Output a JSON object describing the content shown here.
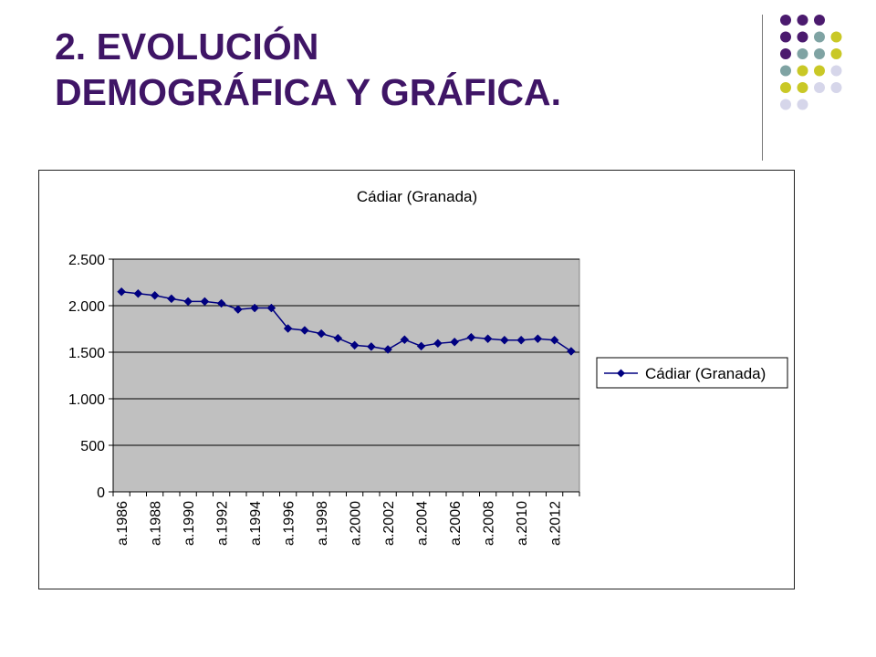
{
  "slide": {
    "title_line1": "2. EVOLUCIÓN",
    "title_line2": "DEMOGRÁFICA Y GRÁFICA."
  },
  "colors": {
    "title": "#3f1566",
    "plot_background": "#c0c0c0",
    "series": "#000080",
    "dot_purple": "#4b1a6e",
    "dot_teal": "#7fa3a3",
    "dot_olive": "#c9c826",
    "dot_lavender": "#d6d6ea"
  },
  "decoration": {
    "dot_grid": [
      [
        "purple",
        "purple",
        "purple",
        null,
        null
      ],
      [
        "purple",
        "purple",
        "teal",
        "olive",
        null
      ],
      [
        "purple",
        "teal",
        "teal",
        "olive",
        null
      ],
      [
        "teal",
        "olive",
        "olive",
        "lavender",
        null
      ],
      [
        "olive",
        "olive",
        "lavender",
        "lavender",
        null
      ],
      [
        "lavender",
        "lavender",
        null,
        null,
        null
      ]
    ]
  },
  "chart_data": {
    "type": "line",
    "title": "Cádiar (Granada)",
    "xlabel": "",
    "ylabel": "",
    "ylim": [
      0,
      2500
    ],
    "y_ticks": [
      0,
      500,
      1000,
      1500,
      2000,
      2500
    ],
    "y_tick_labels": [
      "0",
      "500",
      "1.000",
      "1.500",
      "2.000",
      "2.500"
    ],
    "grid": true,
    "legend_position": "right",
    "x_tick_labels": [
      "a.1986",
      "a.1988",
      "a.1990",
      "a.1992",
      "a.1994",
      "a.1996",
      "a.1998",
      "a.2000",
      "a.2002",
      "a.2004",
      "a.2006",
      "a.2008",
      "a.2010",
      "a.2012"
    ],
    "categories": [
      "a.1986",
      "a.1987",
      "a.1988",
      "a.1989",
      "a.1990",
      "a.1991",
      "a.1992",
      "a.1993",
      "a.1994",
      "a.1995",
      "a.1996",
      "a.1997",
      "a.1998",
      "a.1999",
      "a.2000",
      "a.2001",
      "a.2002",
      "a.2003",
      "a.2004",
      "a.2005",
      "a.2006",
      "a.2007",
      "a.2008",
      "a.2009",
      "a.2010",
      "a.2011",
      "a.2012",
      "a.2013"
    ],
    "series": [
      {
        "name": "Cádiar (Granada)",
        "marker": "diamond",
        "values": [
          2150,
          2130,
          2110,
          2075,
          2045,
          2045,
          2025,
          1960,
          1975,
          1975,
          1755,
          1735,
          1700,
          1650,
          1575,
          1560,
          1530,
          1635,
          1565,
          1595,
          1610,
          1660,
          1645,
          1630,
          1630,
          1645,
          1630,
          1510
        ]
      }
    ]
  }
}
